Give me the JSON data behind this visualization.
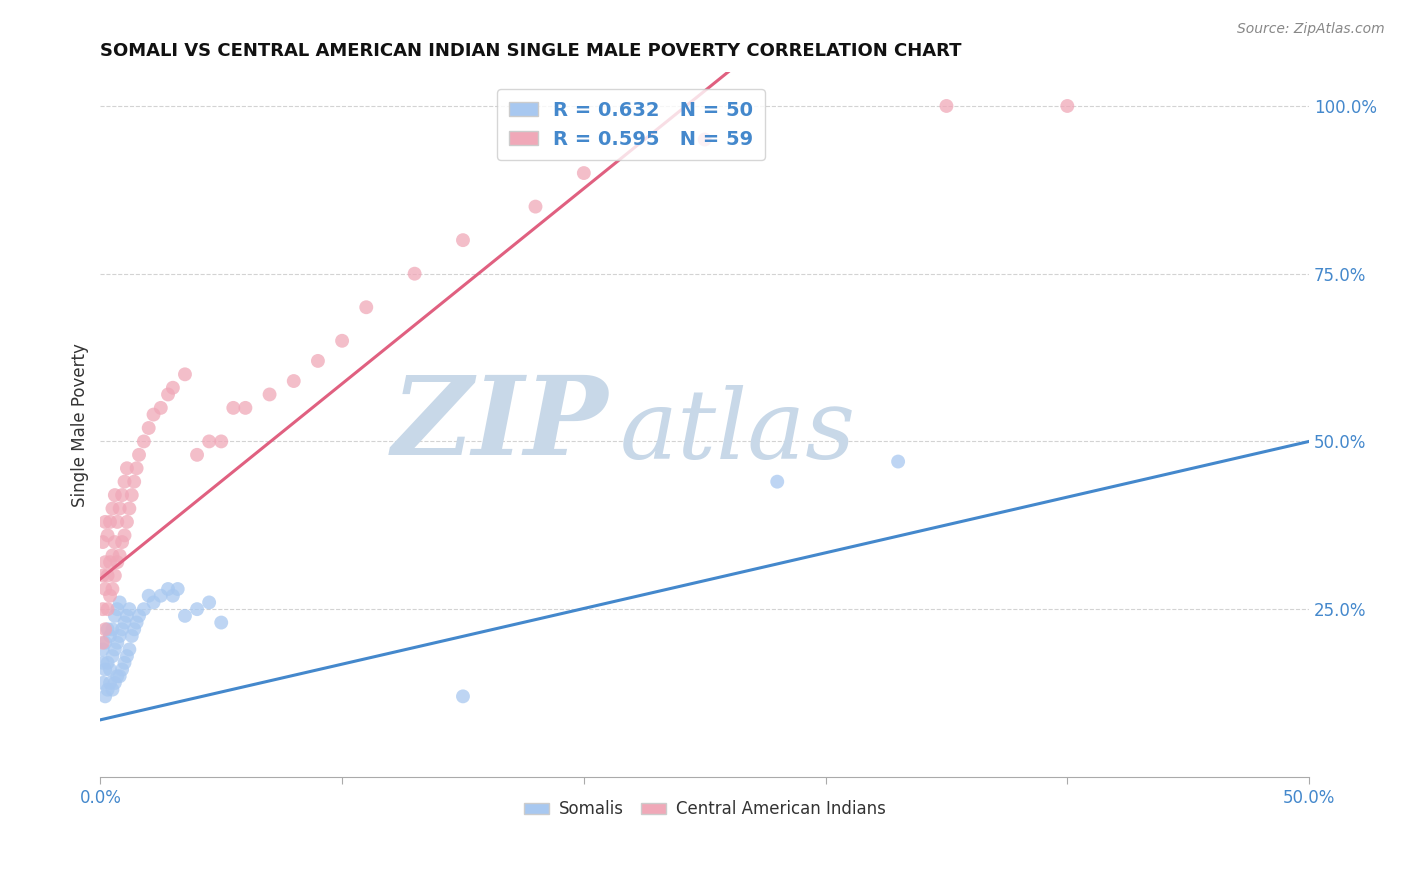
{
  "title": "SOMALI VS CENTRAL AMERICAN INDIAN SINGLE MALE POVERTY CORRELATION CHART",
  "source": "Source: ZipAtlas.com",
  "ylabel": "Single Male Poverty",
  "xlim": [
    0.0,
    0.5
  ],
  "ylim": [
    0.0,
    1.05
  ],
  "ytick_labels": [
    "100.0%",
    "75.0%",
    "50.0%",
    "25.0%"
  ],
  "ytick_positions": [
    1.0,
    0.75,
    0.5,
    0.25
  ],
  "background_color": "#ffffff",
  "grid_color": "#c8c8c8",
  "somali_color": "#a8c8f0",
  "central_american_color": "#f0a8b8",
  "somali_line_color": "#4488cc",
  "central_american_line_color": "#e06080",
  "somali_R": 0.632,
  "somali_N": 50,
  "central_american_R": 0.595,
  "central_american_N": 59,
  "somali_line": [
    0.0,
    0.085,
    0.5,
    0.5
  ],
  "central_line": [
    0.0,
    0.295,
    0.5,
    1.75
  ],
  "somali_x": [
    0.001,
    0.001,
    0.001,
    0.002,
    0.002,
    0.002,
    0.003,
    0.003,
    0.003,
    0.004,
    0.004,
    0.004,
    0.005,
    0.005,
    0.005,
    0.006,
    0.006,
    0.006,
    0.007,
    0.007,
    0.007,
    0.008,
    0.008,
    0.008,
    0.009,
    0.009,
    0.01,
    0.01,
    0.011,
    0.011,
    0.012,
    0.012,
    0.013,
    0.014,
    0.015,
    0.016,
    0.018,
    0.02,
    0.022,
    0.025,
    0.028,
    0.03,
    0.032,
    0.035,
    0.04,
    0.045,
    0.05,
    0.15,
    0.28,
    0.33
  ],
  "somali_y": [
    0.14,
    0.17,
    0.19,
    0.12,
    0.16,
    0.2,
    0.13,
    0.17,
    0.22,
    0.14,
    0.16,
    0.21,
    0.13,
    0.18,
    0.22,
    0.14,
    0.19,
    0.24,
    0.15,
    0.2,
    0.25,
    0.15,
    0.21,
    0.26,
    0.16,
    0.22,
    0.17,
    0.23,
    0.18,
    0.24,
    0.19,
    0.25,
    0.21,
    0.22,
    0.23,
    0.24,
    0.25,
    0.27,
    0.26,
    0.27,
    0.28,
    0.27,
    0.28,
    0.24,
    0.25,
    0.26,
    0.23,
    0.12,
    0.44,
    0.47
  ],
  "central_x": [
    0.001,
    0.001,
    0.001,
    0.001,
    0.002,
    0.002,
    0.002,
    0.002,
    0.003,
    0.003,
    0.003,
    0.004,
    0.004,
    0.004,
    0.005,
    0.005,
    0.005,
    0.006,
    0.006,
    0.006,
    0.007,
    0.007,
    0.008,
    0.008,
    0.009,
    0.009,
    0.01,
    0.01,
    0.011,
    0.011,
    0.012,
    0.013,
    0.014,
    0.015,
    0.016,
    0.018,
    0.02,
    0.022,
    0.025,
    0.028,
    0.03,
    0.035,
    0.04,
    0.045,
    0.05,
    0.055,
    0.06,
    0.07,
    0.08,
    0.09,
    0.1,
    0.11,
    0.13,
    0.15,
    0.18,
    0.2,
    0.25,
    0.35,
    0.4
  ],
  "central_y": [
    0.2,
    0.25,
    0.3,
    0.35,
    0.22,
    0.28,
    0.32,
    0.38,
    0.25,
    0.3,
    0.36,
    0.27,
    0.32,
    0.38,
    0.28,
    0.33,
    0.4,
    0.3,
    0.35,
    0.42,
    0.32,
    0.38,
    0.33,
    0.4,
    0.35,
    0.42,
    0.36,
    0.44,
    0.38,
    0.46,
    0.4,
    0.42,
    0.44,
    0.46,
    0.48,
    0.5,
    0.52,
    0.54,
    0.55,
    0.57,
    0.58,
    0.6,
    0.48,
    0.5,
    0.5,
    0.55,
    0.55,
    0.57,
    0.59,
    0.62,
    0.65,
    0.7,
    0.75,
    0.8,
    0.85,
    0.9,
    0.95,
    1.0,
    1.0
  ]
}
